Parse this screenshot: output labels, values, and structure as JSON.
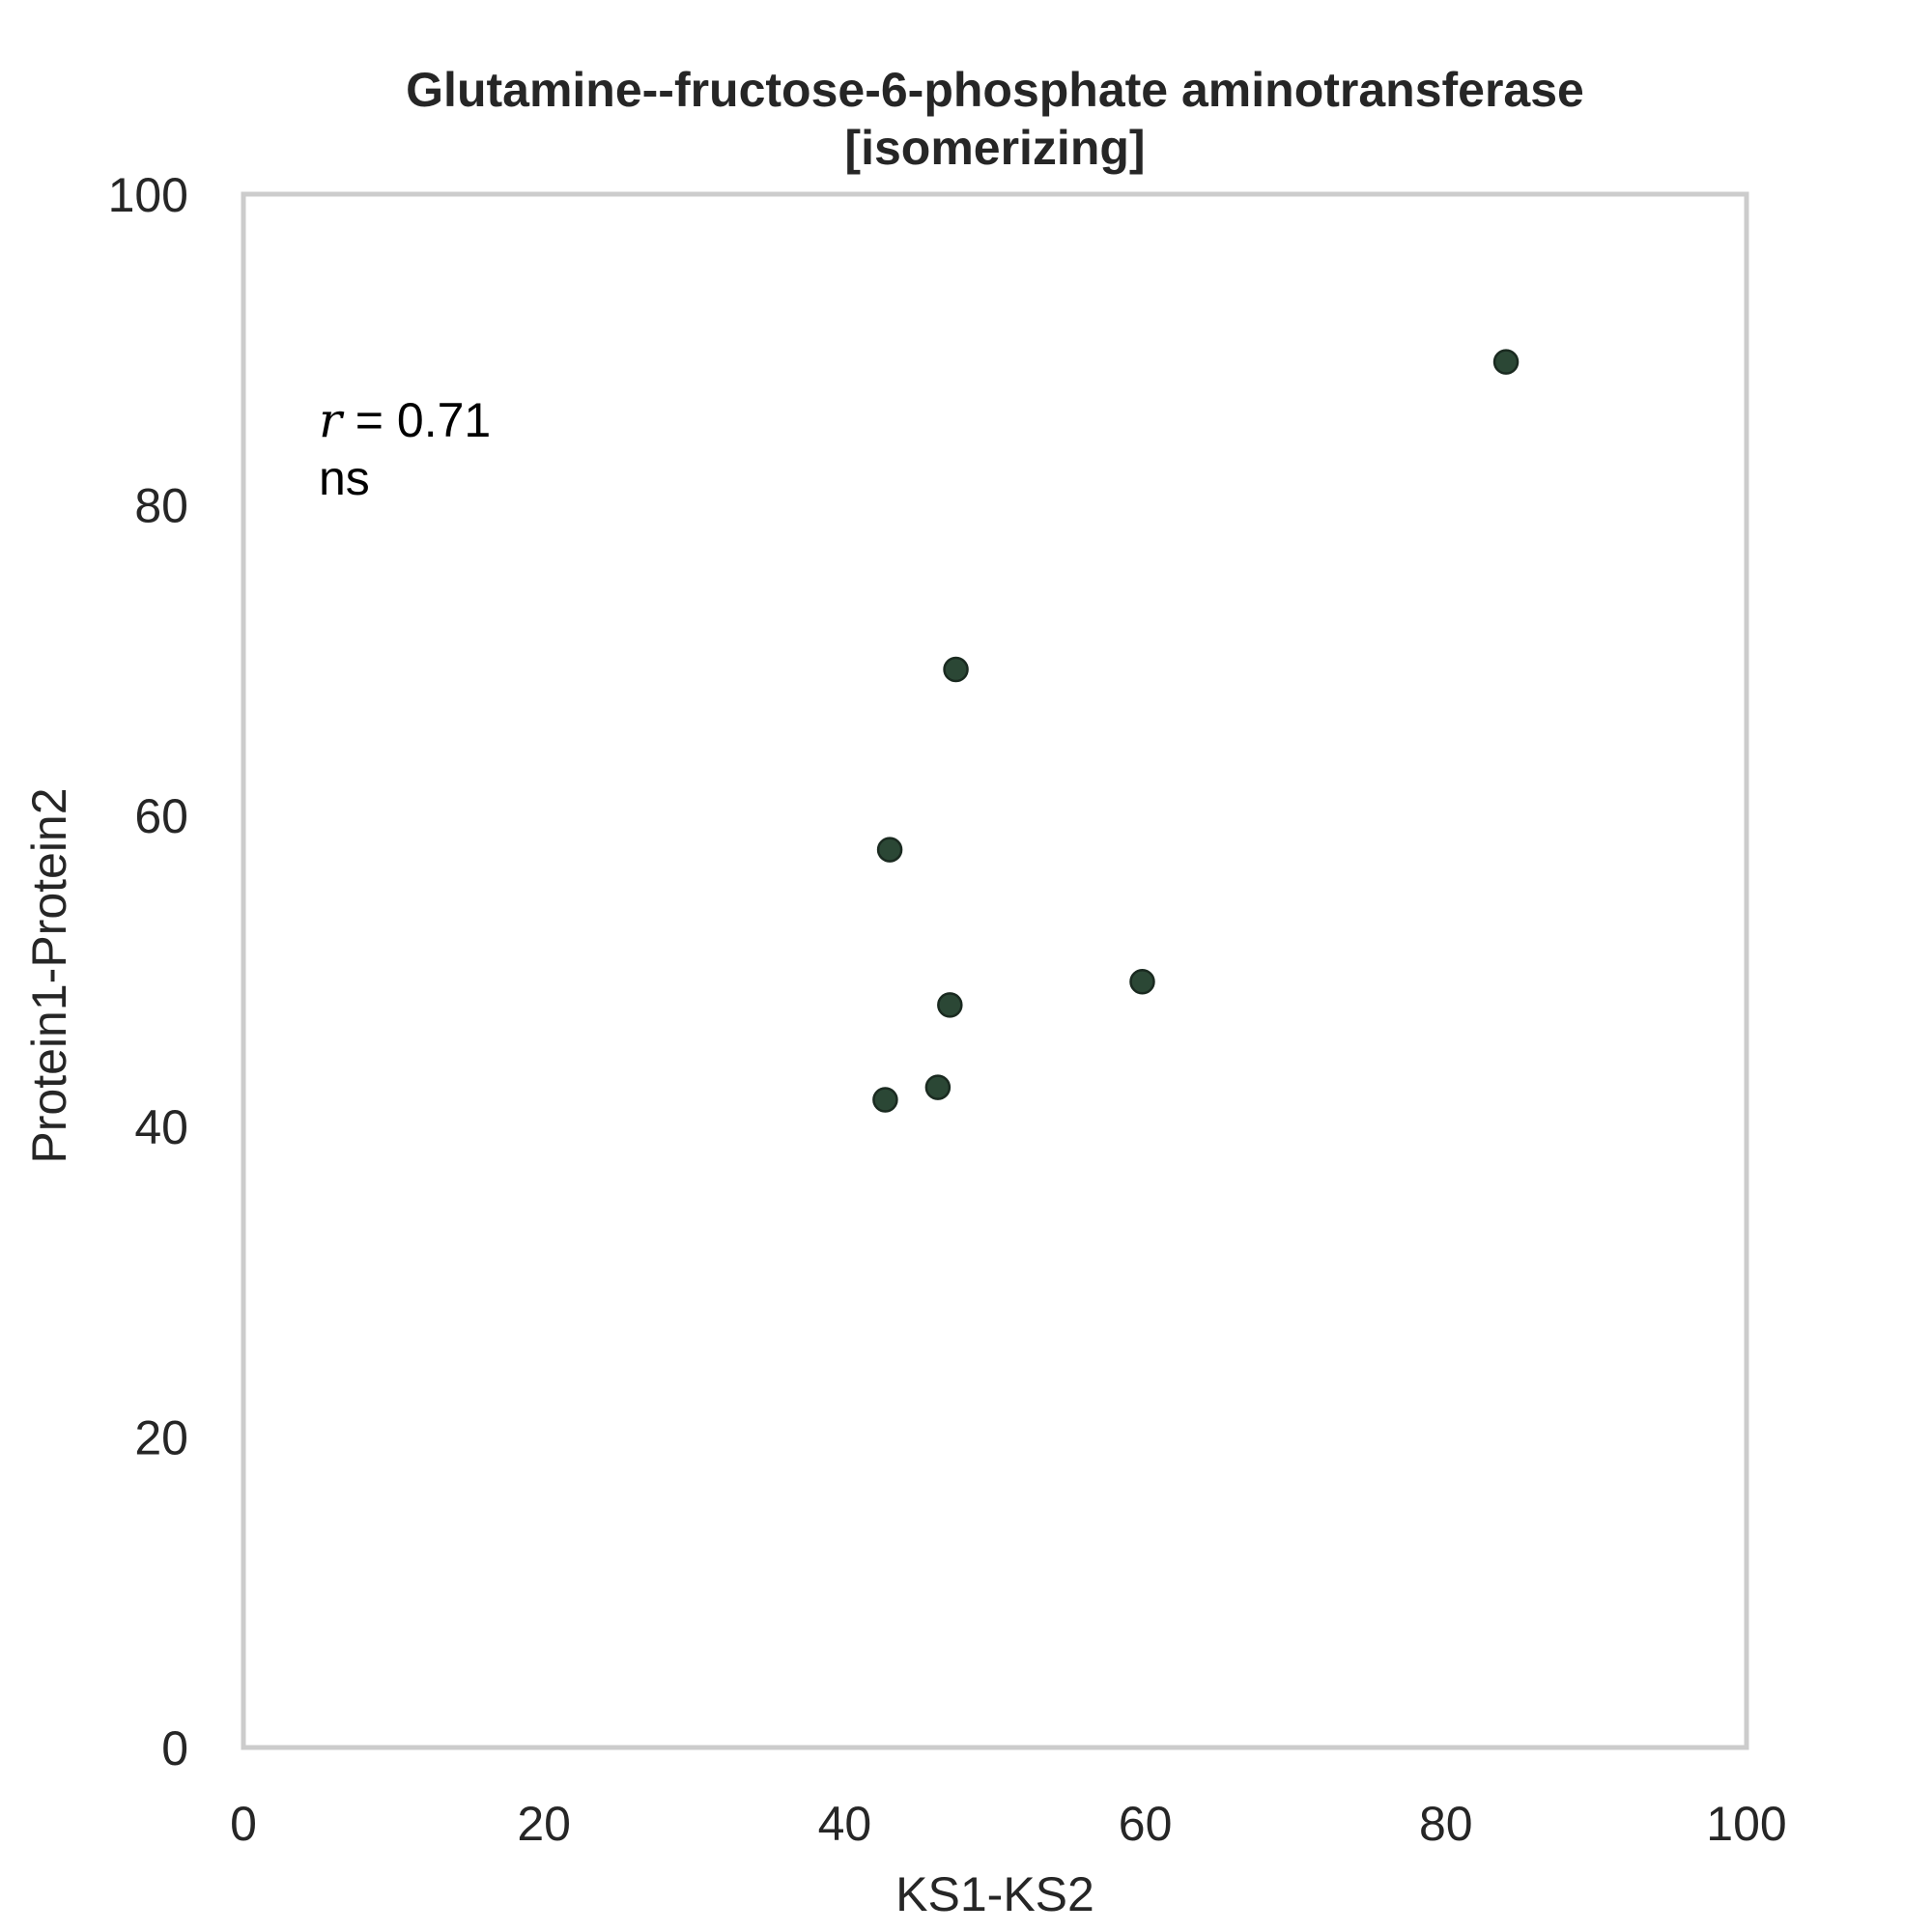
{
  "colors": {
    "point_fill": "#2b4735",
    "point_stroke": "#1a2a20",
    "frame": "#cccccc",
    "text": "#262626"
  },
  "chart_data": {
    "type": "scatter",
    "title_lines": [
      "Glutamine--fructose-6-phosphate aminotransferase",
      "[isomerizing]"
    ],
    "xlabel": "KS1-KS2",
    "ylabel": "Protein1-Protein2",
    "xlim": [
      0,
      100
    ],
    "ylim": [
      0,
      100
    ],
    "xticks": [
      0,
      20,
      40,
      60,
      80,
      100
    ],
    "yticks": [
      0,
      20,
      40,
      60,
      80,
      100
    ],
    "grid": false,
    "annotation": {
      "r_symbol": "r",
      "equals": " = ",
      "r_value": "0.71",
      "significance": "ns"
    },
    "points": [
      {
        "x": 84.0,
        "y": 89.2
      },
      {
        "x": 47.4,
        "y": 69.4
      },
      {
        "x": 43.0,
        "y": 57.8
      },
      {
        "x": 59.8,
        "y": 49.3
      },
      {
        "x": 47.0,
        "y": 47.8
      },
      {
        "x": 46.2,
        "y": 42.5
      },
      {
        "x": 42.7,
        "y": 41.7
      }
    ]
  }
}
